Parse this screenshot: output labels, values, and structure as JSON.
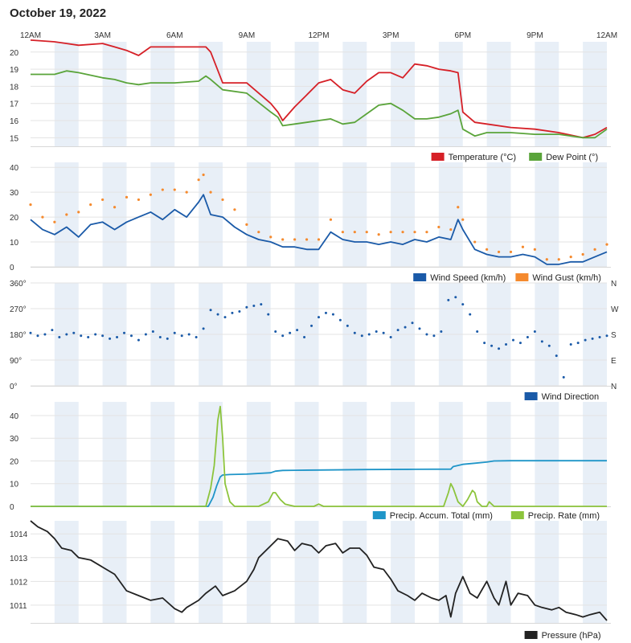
{
  "page": {
    "title": "October 19, 2022",
    "time_labels": [
      "12AM",
      "3AM",
      "6AM",
      "9AM",
      "12PM",
      "3PM",
      "6PM",
      "9PM",
      "12AM"
    ]
  },
  "colors": {
    "temperature": "#d62027",
    "dew_point": "#5aa43a",
    "wind_speed": "#1a5aa8",
    "wind_gust": "#f58a2e",
    "wind_direction": "#1a5aa8",
    "precip_accum": "#1f95c8",
    "precip_rate": "#8cc43c",
    "pressure": "#222222",
    "band": "#e8eff7",
    "grid": "#e3e3e3"
  },
  "chart_data": [
    {
      "type": "line",
      "id": "temperature",
      "x_unit": "hour",
      "xlim": [
        0,
        24
      ],
      "ylim": [
        14.5,
        20.6
      ],
      "yticks": [
        15,
        16,
        17,
        18,
        19,
        20
      ],
      "grid": true,
      "legend_position": "bottom-right",
      "series": [
        {
          "name": "Temperature (°C)",
          "x": [
            0,
            1,
            1.5,
            2,
            3,
            3.5,
            4,
            4.5,
            5,
            6,
            7,
            7.3,
            7.5,
            8,
            9,
            10,
            10.3,
            10.5,
            11,
            11.5,
            12,
            12.5,
            13,
            13.5,
            14,
            14.5,
            15,
            15.5,
            16,
            16.5,
            17,
            17.5,
            17.8,
            18,
            18.5,
            19,
            20,
            21,
            22,
            23,
            23.5,
            24
          ],
          "y": [
            20.7,
            20.6,
            20.5,
            20.4,
            20.5,
            20.3,
            20.1,
            19.8,
            20.3,
            20.3,
            20.3,
            20.3,
            20.0,
            18.2,
            18.2,
            17.0,
            16.5,
            16.0,
            16.8,
            17.5,
            18.2,
            18.4,
            17.8,
            17.6,
            18.3,
            18.8,
            18.8,
            18.5,
            19.3,
            19.2,
            19.0,
            18.9,
            18.8,
            16.5,
            15.9,
            15.8,
            15.6,
            15.5,
            15.3,
            15.0,
            15.2,
            15.6
          ]
        },
        {
          "name": "Dew Point (°)",
          "x": [
            0,
            1,
            1.5,
            2,
            3,
            3.5,
            4,
            4.5,
            5,
            6,
            7,
            7.3,
            7.5,
            8,
            9,
            10,
            10.3,
            10.5,
            11,
            11.5,
            12,
            12.5,
            13,
            13.5,
            14,
            14.5,
            15,
            15.5,
            16,
            16.5,
            17,
            17.5,
            17.8,
            18,
            18.5,
            19,
            20,
            21,
            22,
            23,
            23.5,
            24
          ],
          "y": [
            18.7,
            18.7,
            18.9,
            18.8,
            18.5,
            18.4,
            18.2,
            18.1,
            18.2,
            18.2,
            18.3,
            18.6,
            18.4,
            17.8,
            17.6,
            16.5,
            16.2,
            15.7,
            15.8,
            15.9,
            16.0,
            16.1,
            15.8,
            15.9,
            16.4,
            16.9,
            17.0,
            16.6,
            16.1,
            16.1,
            16.2,
            16.4,
            16.6,
            15.5,
            15.1,
            15.3,
            15.3,
            15.2,
            15.2,
            15.0,
            15.0,
            15.5
          ]
        }
      ]
    },
    {
      "type": "line",
      "id": "wind",
      "x_unit": "hour",
      "xlim": [
        0,
        24
      ],
      "ylim": [
        0,
        42
      ],
      "yticks": [
        0,
        10,
        20,
        30,
        40
      ],
      "grid": true,
      "legend_position": "bottom-right",
      "series": [
        {
          "name": "Wind Speed (km/h)",
          "x": [
            0,
            0.5,
            1,
            1.5,
            2,
            2.5,
            3,
            3.5,
            4,
            4.5,
            5,
            5.5,
            6,
            6.5,
            7,
            7.2,
            7.5,
            8,
            8.5,
            9,
            9.5,
            10,
            10.5,
            11,
            11.5,
            12,
            12.5,
            13,
            13.5,
            14,
            14.5,
            15,
            15.5,
            16,
            16.5,
            17,
            17.5,
            17.8,
            18,
            18.5,
            19,
            19.5,
            20,
            20.5,
            21,
            21.5,
            22,
            22.5,
            23,
            23.5,
            24
          ],
          "y": [
            19,
            15,
            13,
            16,
            12,
            17,
            18,
            15,
            18,
            20,
            22,
            19,
            23,
            20,
            26,
            29,
            21,
            20,
            16,
            13,
            11,
            10,
            8,
            8,
            7,
            7,
            14,
            11,
            10,
            10,
            9,
            10,
            9,
            11,
            10,
            12,
            11,
            19,
            15,
            7,
            5,
            4,
            4,
            5,
            4,
            1,
            1,
            2,
            2,
            4,
            6
          ]
        },
        {
          "name": "Wind Gust (km/h)",
          "x": [
            0,
            0.5,
            1,
            1.5,
            2,
            2.5,
            3,
            3.5,
            4,
            4.5,
            5,
            5.5,
            6,
            6.5,
            7,
            7.2,
            7.5,
            8,
            8.5,
            9,
            9.5,
            10,
            10.5,
            11,
            11.5,
            12,
            12.5,
            13,
            13.5,
            14,
            14.5,
            15,
            15.5,
            16,
            16.5,
            17,
            17.5,
            17.8,
            18,
            18.5,
            19,
            19.5,
            20,
            20.5,
            21,
            21.5,
            22,
            22.5,
            23,
            23.5,
            24
          ],
          "y": [
            25,
            20,
            18,
            21,
            22,
            25,
            27,
            24,
            28,
            27,
            29,
            31,
            31,
            30,
            35,
            37,
            30,
            27,
            23,
            17,
            14,
            12,
            11,
            11,
            11,
            11,
            19,
            14,
            14,
            14,
            13,
            14,
            14,
            14,
            14,
            16,
            15,
            24,
            19,
            10,
            7,
            6,
            6,
            8,
            7,
            3,
            3,
            4,
            5,
            7,
            9
          ]
        }
      ]
    },
    {
      "type": "scatter",
      "id": "wind_direction",
      "x_unit": "hour",
      "xlim": [
        0,
        24
      ],
      "ylim": [
        0,
        360
      ],
      "yticks": [
        0,
        90,
        180,
        270,
        360
      ],
      "ytick_labels": [
        "0°",
        "90°",
        "180°",
        "270°",
        "360°"
      ],
      "right_labels": [
        "N",
        "E",
        "S",
        "W",
        "N"
      ],
      "grid": true,
      "legend_position": "bottom-right",
      "series": [
        {
          "name": "Wind Direction",
          "x": [
            0,
            0.3,
            0.6,
            0.9,
            1.2,
            1.5,
            1.8,
            2.1,
            2.4,
            2.7,
            3,
            3.3,
            3.6,
            3.9,
            4.2,
            4.5,
            4.8,
            5.1,
            5.4,
            5.7,
            6,
            6.3,
            6.6,
            6.9,
            7.2,
            7.5,
            7.8,
            8.1,
            8.4,
            8.7,
            9,
            9.3,
            9.6,
            9.9,
            10.2,
            10.5,
            10.8,
            11.1,
            11.4,
            11.7,
            12,
            12.3,
            12.6,
            12.9,
            13.2,
            13.5,
            13.8,
            14.1,
            14.4,
            14.7,
            15,
            15.3,
            15.6,
            15.9,
            16.2,
            16.5,
            16.8,
            17.1,
            17.4,
            17.7,
            18,
            18.3,
            18.6,
            18.9,
            19.2,
            19.5,
            19.8,
            20.1,
            20.4,
            20.7,
            21,
            21.3,
            21.6,
            21.9,
            22.2,
            22.5,
            22.8,
            23.1,
            23.4,
            23.7,
            24
          ],
          "y": [
            185,
            175,
            180,
            195,
            170,
            180,
            185,
            175,
            170,
            180,
            175,
            165,
            170,
            185,
            175,
            160,
            180,
            190,
            170,
            165,
            185,
            175,
            180,
            170,
            200,
            265,
            250,
            240,
            255,
            260,
            275,
            280,
            285,
            250,
            190,
            175,
            185,
            195,
            170,
            210,
            240,
            255,
            250,
            230,
            210,
            185,
            175,
            180,
            190,
            185,
            170,
            195,
            205,
            220,
            200,
            180,
            175,
            190,
            300,
            310,
            285,
            250,
            190,
            150,
            140,
            130,
            145,
            160,
            150,
            170,
            190,
            155,
            140,
            105,
            30,
            145,
            150,
            160,
            165,
            170,
            175
          ]
        }
      ]
    },
    {
      "type": "line",
      "id": "precipitation",
      "x_unit": "hour",
      "xlim": [
        0,
        24
      ],
      "ylim": [
        0,
        46
      ],
      "yticks": [
        0,
        10,
        20,
        30,
        40
      ],
      "grid": true,
      "legend_position": "bottom-right",
      "series": [
        {
          "name": "Precip. Accum. Total (mm)",
          "x": [
            0,
            7.4,
            7.6,
            7.75,
            7.9,
            8.0,
            8.3,
            9.0,
            10.0,
            10.2,
            10.5,
            11.0,
            12.0,
            14.0,
            16.0,
            17.5,
            17.6,
            17.8,
            18.0,
            18.5,
            19.0,
            19.3,
            20.0,
            22.0,
            24.0
          ],
          "y": [
            0,
            0,
            4,
            9,
            13,
            13.8,
            14.0,
            14.2,
            14.8,
            15.5,
            15.8,
            15.9,
            16.0,
            16.2,
            16.3,
            16.4,
            17.5,
            18.0,
            18.5,
            19.0,
            19.5,
            20.0,
            20.1,
            20.1,
            20.1
          ]
        },
        {
          "name": "Precip. Rate (mm)",
          "x": [
            0,
            7.3,
            7.5,
            7.65,
            7.8,
            7.9,
            8.0,
            8.1,
            8.3,
            8.5,
            9.5,
            9.9,
            10.1,
            10.2,
            10.4,
            10.6,
            11.0,
            11.8,
            12.0,
            12.2,
            12.4,
            17.2,
            17.4,
            17.5,
            17.6,
            17.8,
            18.0,
            18.2,
            18.4,
            18.5,
            18.6,
            18.8,
            19.0,
            19.1,
            19.3,
            24.0
          ],
          "y": [
            0,
            0,
            8,
            18,
            38,
            44,
            30,
            10,
            2,
            0,
            0,
            2,
            6,
            6,
            3,
            1,
            0,
            0,
            1,
            0,
            0,
            0,
            6,
            10,
            8,
            2,
            0,
            3,
            7,
            6,
            2,
            0,
            0,
            2,
            0,
            0
          ]
        }
      ]
    },
    {
      "type": "line",
      "id": "pressure",
      "x_unit": "hour",
      "xlim": [
        0,
        24
      ],
      "ylim": [
        1010.25,
        1014.55
      ],
      "yticks": [
        1011,
        1012,
        1013,
        1014
      ],
      "grid": true,
      "legend_position": "bottom-right",
      "series": [
        {
          "name": "Pressure (hPa)",
          "x": [
            0,
            0.3,
            0.7,
            1,
            1.3,
            1.7,
            2,
            2.5,
            3,
            3.5,
            4,
            4.5,
            5,
            5.5,
            6,
            6.3,
            6.5,
            7,
            7.3,
            7.7,
            8,
            8.5,
            9,
            9.3,
            9.5,
            10,
            10.3,
            10.7,
            11,
            11.3,
            11.7,
            12,
            12.3,
            12.7,
            13,
            13.3,
            13.7,
            14,
            14.3,
            14.7,
            15,
            15.3,
            15.7,
            16,
            16.3,
            16.7,
            17,
            17.3,
            17.5,
            17.7,
            18,
            18.3,
            18.6,
            19,
            19.3,
            19.5,
            19.8,
            20,
            20.3,
            20.7,
            21,
            21.3,
            21.7,
            22,
            22.3,
            22.7,
            23,
            23.3,
            23.7,
            24
          ],
          "y": [
            1014.55,
            1014.3,
            1014.1,
            1013.8,
            1013.4,
            1013.3,
            1013.0,
            1012.9,
            1012.6,
            1012.3,
            1011.6,
            1011.4,
            1011.2,
            1011.3,
            1010.85,
            1010.7,
            1010.9,
            1011.2,
            1011.5,
            1011.8,
            1011.4,
            1011.6,
            1012.0,
            1012.5,
            1013.0,
            1013.5,
            1013.8,
            1013.7,
            1013.3,
            1013.6,
            1013.5,
            1013.2,
            1013.5,
            1013.6,
            1013.2,
            1013.4,
            1013.4,
            1013.1,
            1012.6,
            1012.5,
            1012.1,
            1011.6,
            1011.4,
            1011.2,
            1011.5,
            1011.3,
            1011.2,
            1011.4,
            1010.5,
            1011.5,
            1012.2,
            1011.5,
            1011.3,
            1012.0,
            1011.3,
            1011.0,
            1012.0,
            1011.0,
            1011.5,
            1011.4,
            1011.0,
            1010.9,
            1010.8,
            1010.9,
            1010.7,
            1010.6,
            1010.5,
            1010.6,
            1010.7,
            1010.35
          ]
        }
      ]
    }
  ]
}
